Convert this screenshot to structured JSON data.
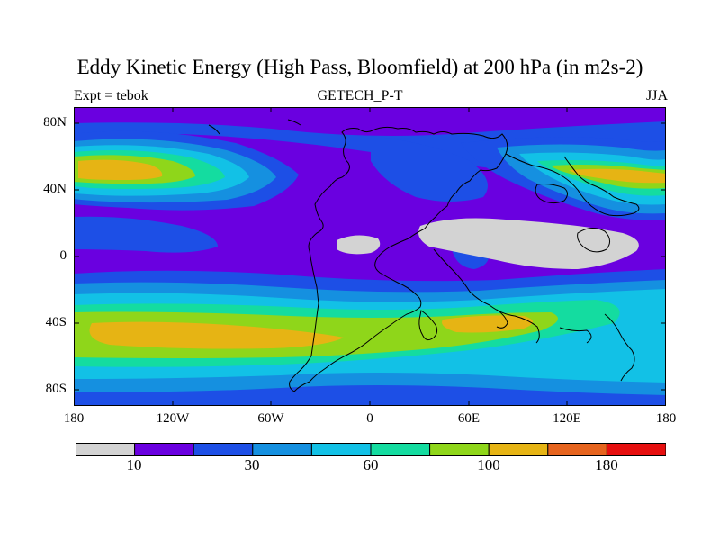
{
  "title": "Eddy Kinetic Energy (High Pass, Bloomfield) at 200 hPa (in m2s-2)",
  "left_string": "Expt = tebok",
  "center_string": "GETECH_P-T",
  "right_string": "JJA",
  "map_data": {
    "projection": "cylindrical-equidistant",
    "lon_range": [
      -180,
      180
    ],
    "lat_range": [
      -90,
      90
    ],
    "y_ticks": [
      {
        "lat": 80,
        "label": "80N"
      },
      {
        "lat": 40,
        "label": "40N"
      },
      {
        "lat": 0,
        "label": "0"
      },
      {
        "lat": -40,
        "label": "40S"
      },
      {
        "lat": -80,
        "label": "80S"
      }
    ],
    "x_ticks": [
      {
        "lon": -180,
        "label": "180"
      },
      {
        "lon": -120,
        "label": "120W"
      },
      {
        "lon": -60,
        "label": "60W"
      },
      {
        "lon": 0,
        "label": "0"
      },
      {
        "lon": 60,
        "label": "60E"
      },
      {
        "lon": 120,
        "label": "120E"
      },
      {
        "lon": 180,
        "label": "180"
      }
    ],
    "missing_color": "#d3d3d3",
    "coastline_color": "#000000"
  },
  "colorbar": {
    "colors": [
      "#d3d3d3",
      "#6a00e0",
      "#1d4fe6",
      "#1590e0",
      "#12c1e6",
      "#14dca0",
      "#8fd61a",
      "#e6b414",
      "#e6641e",
      "#e60f0f"
    ],
    "labels": [
      {
        "text": "10",
        "index": 1
      },
      {
        "text": "30",
        "index": 3
      },
      {
        "text": "60",
        "index": 5
      },
      {
        "text": "100",
        "index": 7
      },
      {
        "text": "180",
        "index": 9
      }
    ]
  }
}
